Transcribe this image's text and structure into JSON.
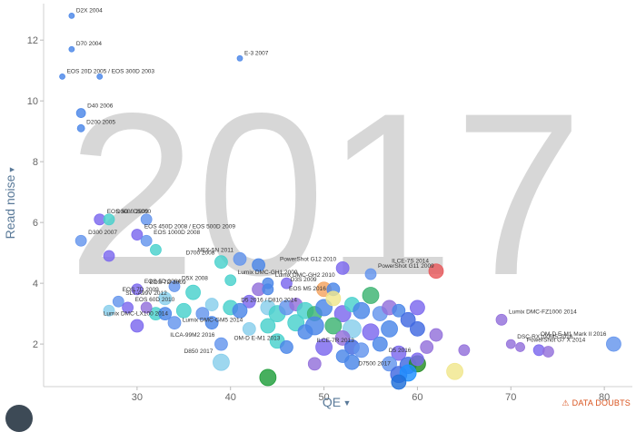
{
  "chart_data": {
    "type": "scatter",
    "year_label": "2017",
    "xlabel": "QE",
    "ylabel": "Read noise",
    "xlim": [
      20,
      83
    ],
    "ylim": [
      0.6,
      13.2
    ],
    "xticks": [
      30,
      40,
      50,
      60,
      70,
      80
    ],
    "yticks": [
      2,
      4,
      6,
      8,
      10,
      12
    ],
    "grid": false,
    "legend": "none",
    "points": [
      {
        "label": "D2X 2004",
        "x": 23,
        "y": 12.8,
        "r": 3,
        "color": "#4a86e8"
      },
      {
        "label": "D70 2004",
        "x": 23,
        "y": 11.7,
        "r": 3,
        "color": "#4a86e8"
      },
      {
        "label": "EOS 20D 2005 / EOS 300D 2003",
        "x": 22,
        "y": 10.8,
        "r": 3,
        "color": "#4a86e8"
      },
      {
        "label": "",
        "x": 26,
        "y": 10.8,
        "r": 3,
        "color": "#4a86e8"
      },
      {
        "label": "E-3 2007",
        "x": 41,
        "y": 11.4,
        "r": 3,
        "color": "#4a86e8"
      },
      {
        "label": "D40 2006",
        "x": 24,
        "y": 9.6,
        "r": 5,
        "color": "#4a86e8"
      },
      {
        "label": "D200 2005",
        "x": 24,
        "y": 9.1,
        "r": 4,
        "color": "#4a86e8"
      },
      {
        "label": "EOS 5D / D5000",
        "x": 26,
        "y": 6.1,
        "r": 6,
        "color": "#7b68ee"
      },
      {
        "label": "D3000 2009",
        "x": 27,
        "y": 6.1,
        "r": 6,
        "color": "#48d1cc"
      },
      {
        "label": "",
        "x": 31,
        "y": 6.1,
        "r": 6,
        "color": "#6495ed"
      },
      {
        "label": "EOS 450D 2008 / EOS 500D 2009",
        "x": 30,
        "y": 5.6,
        "r": 6,
        "color": "#7b68ee"
      },
      {
        "label": "EOS 1000D 2008",
        "x": 31,
        "y": 5.4,
        "r": 6,
        "color": "#6495ed"
      },
      {
        "label": "D300 2007",
        "x": 24,
        "y": 5.4,
        "r": 6,
        "color": "#6495ed"
      },
      {
        "label": "",
        "x": 32,
        "y": 5.1,
        "r": 6,
        "color": "#48d1cc"
      },
      {
        "label": "",
        "x": 27,
        "y": 4.9,
        "r": 6,
        "color": "#7b68ee"
      },
      {
        "label": "D700 2008",
        "x": 39,
        "y": 4.7,
        "r": 7,
        "color": "#48d1cc"
      },
      {
        "label": "NEX-5N 2011",
        "x": 41,
        "y": 4.8,
        "r": 7,
        "color": "#6495ed"
      },
      {
        "label": "",
        "x": 43,
        "y": 4.6,
        "r": 7,
        "color": "#4a86e8"
      },
      {
        "label": "PowerShot G12 2010",
        "x": 52,
        "y": 4.5,
        "r": 7,
        "color": "#7b68ee"
      },
      {
        "label": "ILCE-7S 2014",
        "x": 62,
        "y": 4.4,
        "r": 8,
        "color": "#e8595b"
      },
      {
        "label": "PowerShot G11 2009",
        "x": 55,
        "y": 4.3,
        "r": 6,
        "color": "#6495ed"
      },
      {
        "label": "Lumix DMC-GH1 2009",
        "x": 40,
        "y": 4.1,
        "r": 6,
        "color": "#48d1cc"
      },
      {
        "label": "Lumix DMC-GH2 2010",
        "x": 44,
        "y": 4.0,
        "r": 6,
        "color": "#4a86e8"
      },
      {
        "label": "D5X 2008",
        "x": 34,
        "y": 3.9,
        "r": 6,
        "color": "#6495ed"
      },
      {
        "label": "EOS 7D 2009",
        "x": 33,
        "y": 3.5,
        "r": 7,
        "color": "#87ceeb"
      },
      {
        "label": "EOS 7D 2009",
        "x": 36,
        "y": 3.7,
        "r": 8,
        "color": "#48d1cc"
      },
      {
        "label": "EOS 5D 2004",
        "x": 30,
        "y": 3.8,
        "r": 6,
        "color": "#7b68ee"
      },
      {
        "label": "",
        "x": 43,
        "y": 3.8,
        "r": 7,
        "color": "#9370db"
      },
      {
        "label": "",
        "x": 44,
        "y": 3.8,
        "r": 6,
        "color": "#4a86e8"
      },
      {
        "label": "",
        "x": 46,
        "y": 4.0,
        "r": 6,
        "color": "#7b68ee"
      },
      {
        "label": "D3S 2009",
        "x": 50,
        "y": 3.8,
        "r": 8,
        "color": "#f4a460"
      },
      {
        "label": "",
        "x": 51,
        "y": 3.8,
        "r": 7,
        "color": "#4a86e8"
      },
      {
        "label": "SLT-A99V 2012",
        "x": 28,
        "y": 3.4,
        "r": 6,
        "color": "#6495ed"
      },
      {
        "label": "EOS 60D 2010",
        "x": 29,
        "y": 3.2,
        "r": 6,
        "color": "#7b68ee"
      },
      {
        "label": "",
        "x": 27,
        "y": 3.1,
        "r": 6,
        "color": "#87ceeb"
      },
      {
        "label": "",
        "x": 32,
        "y": 3.0,
        "r": 7,
        "color": "#48d1cc"
      },
      {
        "label": "",
        "x": 31,
        "y": 3.2,
        "r": 6,
        "color": "#9370db"
      },
      {
        "label": "",
        "x": 33,
        "y": 3.0,
        "r": 7,
        "color": "#4a86e8"
      },
      {
        "label": "",
        "x": 35,
        "y": 3.1,
        "r": 8,
        "color": "#48d1cc"
      },
      {
        "label": "",
        "x": 37,
        "y": 3.0,
        "r": 7,
        "color": "#6495ed"
      },
      {
        "label": "",
        "x": 38,
        "y": 3.3,
        "r": 7,
        "color": "#87ceeb"
      },
      {
        "label": "",
        "x": 40,
        "y": 3.2,
        "r": 8,
        "color": "#48d1cc"
      },
      {
        "label": "",
        "x": 42,
        "y": 3.4,
        "r": 7,
        "color": "#7b68ee"
      },
      {
        "label": "",
        "x": 41,
        "y": 3.1,
        "r": 8,
        "color": "#4a86e8"
      },
      {
        "label": "",
        "x": 44,
        "y": 3.2,
        "r": 8,
        "color": "#87ceeb"
      },
      {
        "label": "",
        "x": 45,
        "y": 3.0,
        "r": 9,
        "color": "#48d1cc"
      },
      {
        "label": "",
        "x": 46,
        "y": 3.2,
        "r": 8,
        "color": "#6495ed"
      },
      {
        "label": "",
        "x": 47,
        "y": 3.3,
        "r": 7,
        "color": "#9370db"
      },
      {
        "label": "D5 2016 / D810 2014",
        "x": 48,
        "y": 3.1,
        "r": 9,
        "color": "#48d1cc"
      },
      {
        "label": "",
        "x": 49,
        "y": 3.0,
        "r": 8,
        "color": "#3cb371"
      },
      {
        "label": "",
        "x": 50,
        "y": 3.2,
        "r": 9,
        "color": "#4a86e8"
      },
      {
        "label": "EOS M5 2016",
        "x": 51,
        "y": 3.5,
        "r": 8,
        "color": "#f0e68c"
      },
      {
        "label": "",
        "x": 52,
        "y": 3.0,
        "r": 9,
        "color": "#7b68ee"
      },
      {
        "label": "",
        "x": 53,
        "y": 3.3,
        "r": 8,
        "color": "#48d1cc"
      },
      {
        "label": "",
        "x": 54,
        "y": 3.1,
        "r": 9,
        "color": "#4a86e8"
      },
      {
        "label": "",
        "x": 55,
        "y": 3.6,
        "r": 9,
        "color": "#3cb371"
      },
      {
        "label": "",
        "x": 56,
        "y": 3.0,
        "r": 8,
        "color": "#6495ed"
      },
      {
        "label": "",
        "x": 57,
        "y": 3.2,
        "r": 8,
        "color": "#9370db"
      },
      {
        "label": "",
        "x": 58,
        "y": 3.1,
        "r": 7,
        "color": "#4a86e8"
      },
      {
        "label": "",
        "x": 60,
        "y": 3.2,
        "r": 8,
        "color": "#7b68ee"
      },
      {
        "label": "",
        "x": 59,
        "y": 2.8,
        "r": 8,
        "color": "#4169e1"
      },
      {
        "label": "Lumix DMC-FZ1000 2014",
        "x": 69,
        "y": 2.8,
        "r": 6,
        "color": "#9370db"
      },
      {
        "label": "",
        "x": 47,
        "y": 2.7,
        "r": 9,
        "color": "#48d1cc"
      },
      {
        "label": "",
        "x": 49,
        "y": 2.6,
        "r": 10,
        "color": "#4a86e8"
      },
      {
        "label": "",
        "x": 51,
        "y": 2.6,
        "r": 9,
        "color": "#3cb371"
      },
      {
        "label": "",
        "x": 53,
        "y": 2.5,
        "r": 10,
        "color": "#87ceeb"
      },
      {
        "label": "",
        "x": 55,
        "y": 2.4,
        "r": 9,
        "color": "#7b68ee"
      },
      {
        "label": "",
        "x": 57,
        "y": 2.5,
        "r": 9,
        "color": "#4a86e8"
      },
      {
        "label": "",
        "x": 60,
        "y": 2.5,
        "r": 8,
        "color": "#4169e1"
      },
      {
        "label": "",
        "x": 62,
        "y": 2.3,
        "r": 7,
        "color": "#9370db"
      },
      {
        "label": "Lumix DMC-LX100 2014",
        "x": 34,
        "y": 2.7,
        "r": 7,
        "color": "#6495ed"
      },
      {
        "label": "",
        "x": 30,
        "y": 2.6,
        "r": 7,
        "color": "#7b68ee"
      },
      {
        "label": "",
        "x": 38,
        "y": 2.7,
        "r": 7,
        "color": "#4a86e8"
      },
      {
        "label": "Lumix DMC-GM5 2014",
        "x": 42,
        "y": 2.5,
        "r": 7,
        "color": "#87ceeb"
      },
      {
        "label": "",
        "x": 44,
        "y": 2.6,
        "r": 8,
        "color": "#48d1cc"
      },
      {
        "label": "",
        "x": 48,
        "y": 2.4,
        "r": 8,
        "color": "#4a86e8"
      },
      {
        "label": "",
        "x": 52,
        "y": 2.2,
        "r": 8,
        "color": "#9370db"
      },
      {
        "label": "ILCA-99M2 2016",
        "x": 39,
        "y": 2.0,
        "r": 7,
        "color": "#6495ed"
      },
      {
        "label": "",
        "x": 45,
        "y": 2.1,
        "r": 8,
        "color": "#48d1cc"
      },
      {
        "label": "OM-D E-M1 2013",
        "x": 46,
        "y": 1.9,
        "r": 7,
        "color": "#4a86e8"
      },
      {
        "label": "",
        "x": 50,
        "y": 1.9,
        "r": 9,
        "color": "#7b68ee"
      },
      {
        "label": "",
        "x": 53,
        "y": 1.9,
        "r": 8,
        "color": "#4169e1"
      },
      {
        "label": "ILCE-7R 2013",
        "x": 54,
        "y": 1.8,
        "r": 8,
        "color": "#6495ed"
      },
      {
        "label": "",
        "x": 56,
        "y": 2.0,
        "r": 8,
        "color": "#4a86e8"
      },
      {
        "label": "",
        "x": 58,
        "y": 1.7,
        "r": 8,
        "color": "#7b68ee"
      },
      {
        "label": "",
        "x": 61,
        "y": 1.9,
        "r": 7,
        "color": "#9370db"
      },
      {
        "label": "",
        "x": 65,
        "y": 1.8,
        "r": 6,
        "color": "#9370db"
      },
      {
        "label": "",
        "x": 52,
        "y": 1.6,
        "r": 7,
        "color": "#4a86e8"
      },
      {
        "label": "D850 2017",
        "x": 39,
        "y": 1.4,
        "r": 9,
        "color": "#87ceeb"
      },
      {
        "label": "",
        "x": 49,
        "y": 1.35,
        "r": 7,
        "color": "#9370db"
      },
      {
        "label": "",
        "x": 53,
        "y": 1.4,
        "r": 8,
        "color": "#4a86e8"
      },
      {
        "label": "",
        "x": 57,
        "y": 1.35,
        "r": 8,
        "color": "#6495ed"
      },
      {
        "label": "",
        "x": 59,
        "y": 1.3,
        "r": 9,
        "color": "#4169e1"
      },
      {
        "label": "",
        "x": 60,
        "y": 1.35,
        "r": 9,
        "color": "#228b22"
      },
      {
        "label": "D5 2016",
        "x": 60,
        "y": 1.5,
        "r": 7,
        "color": "#7b68ee"
      },
      {
        "label": "",
        "x": 64,
        "y": 1.1,
        "r": 9,
        "color": "#f0e68c"
      },
      {
        "label": "D7500 2017",
        "x": 58,
        "y": 1.0,
        "r": 9,
        "color": "#4169e1"
      },
      {
        "label": "",
        "x": 59,
        "y": 1.05,
        "r": 9,
        "color": "#1e90ff"
      },
      {
        "label": "",
        "x": 58,
        "y": 0.75,
        "r": 8,
        "color": "#1e6fd9"
      },
      {
        "label": "",
        "x": 44,
        "y": 0.9,
        "r": 9,
        "color": "#1f9e3a"
      },
      {
        "label": "DSC-RX100M5 2016",
        "x": 70,
        "y": 2.0,
        "r": 5,
        "color": "#9370db"
      },
      {
        "label": "PowerShot G7 X 2014",
        "x": 71,
        "y": 1.9,
        "r": 5,
        "color": "#9370db"
      },
      {
        "label": "",
        "x": 73,
        "y": 1.8,
        "r": 6,
        "color": "#7b68ee"
      },
      {
        "label": "",
        "x": 74,
        "y": 1.75,
        "r": 6,
        "color": "#9370db"
      },
      {
        "label": "OM-D E-M1 Mark II 2016",
        "x": 81,
        "y": 2.0,
        "r": 8,
        "color": "#6495ed"
      }
    ]
  },
  "footer": {
    "data_doubts_label": "DATA DOUBTS",
    "warning_icon": "warning-icon"
  }
}
